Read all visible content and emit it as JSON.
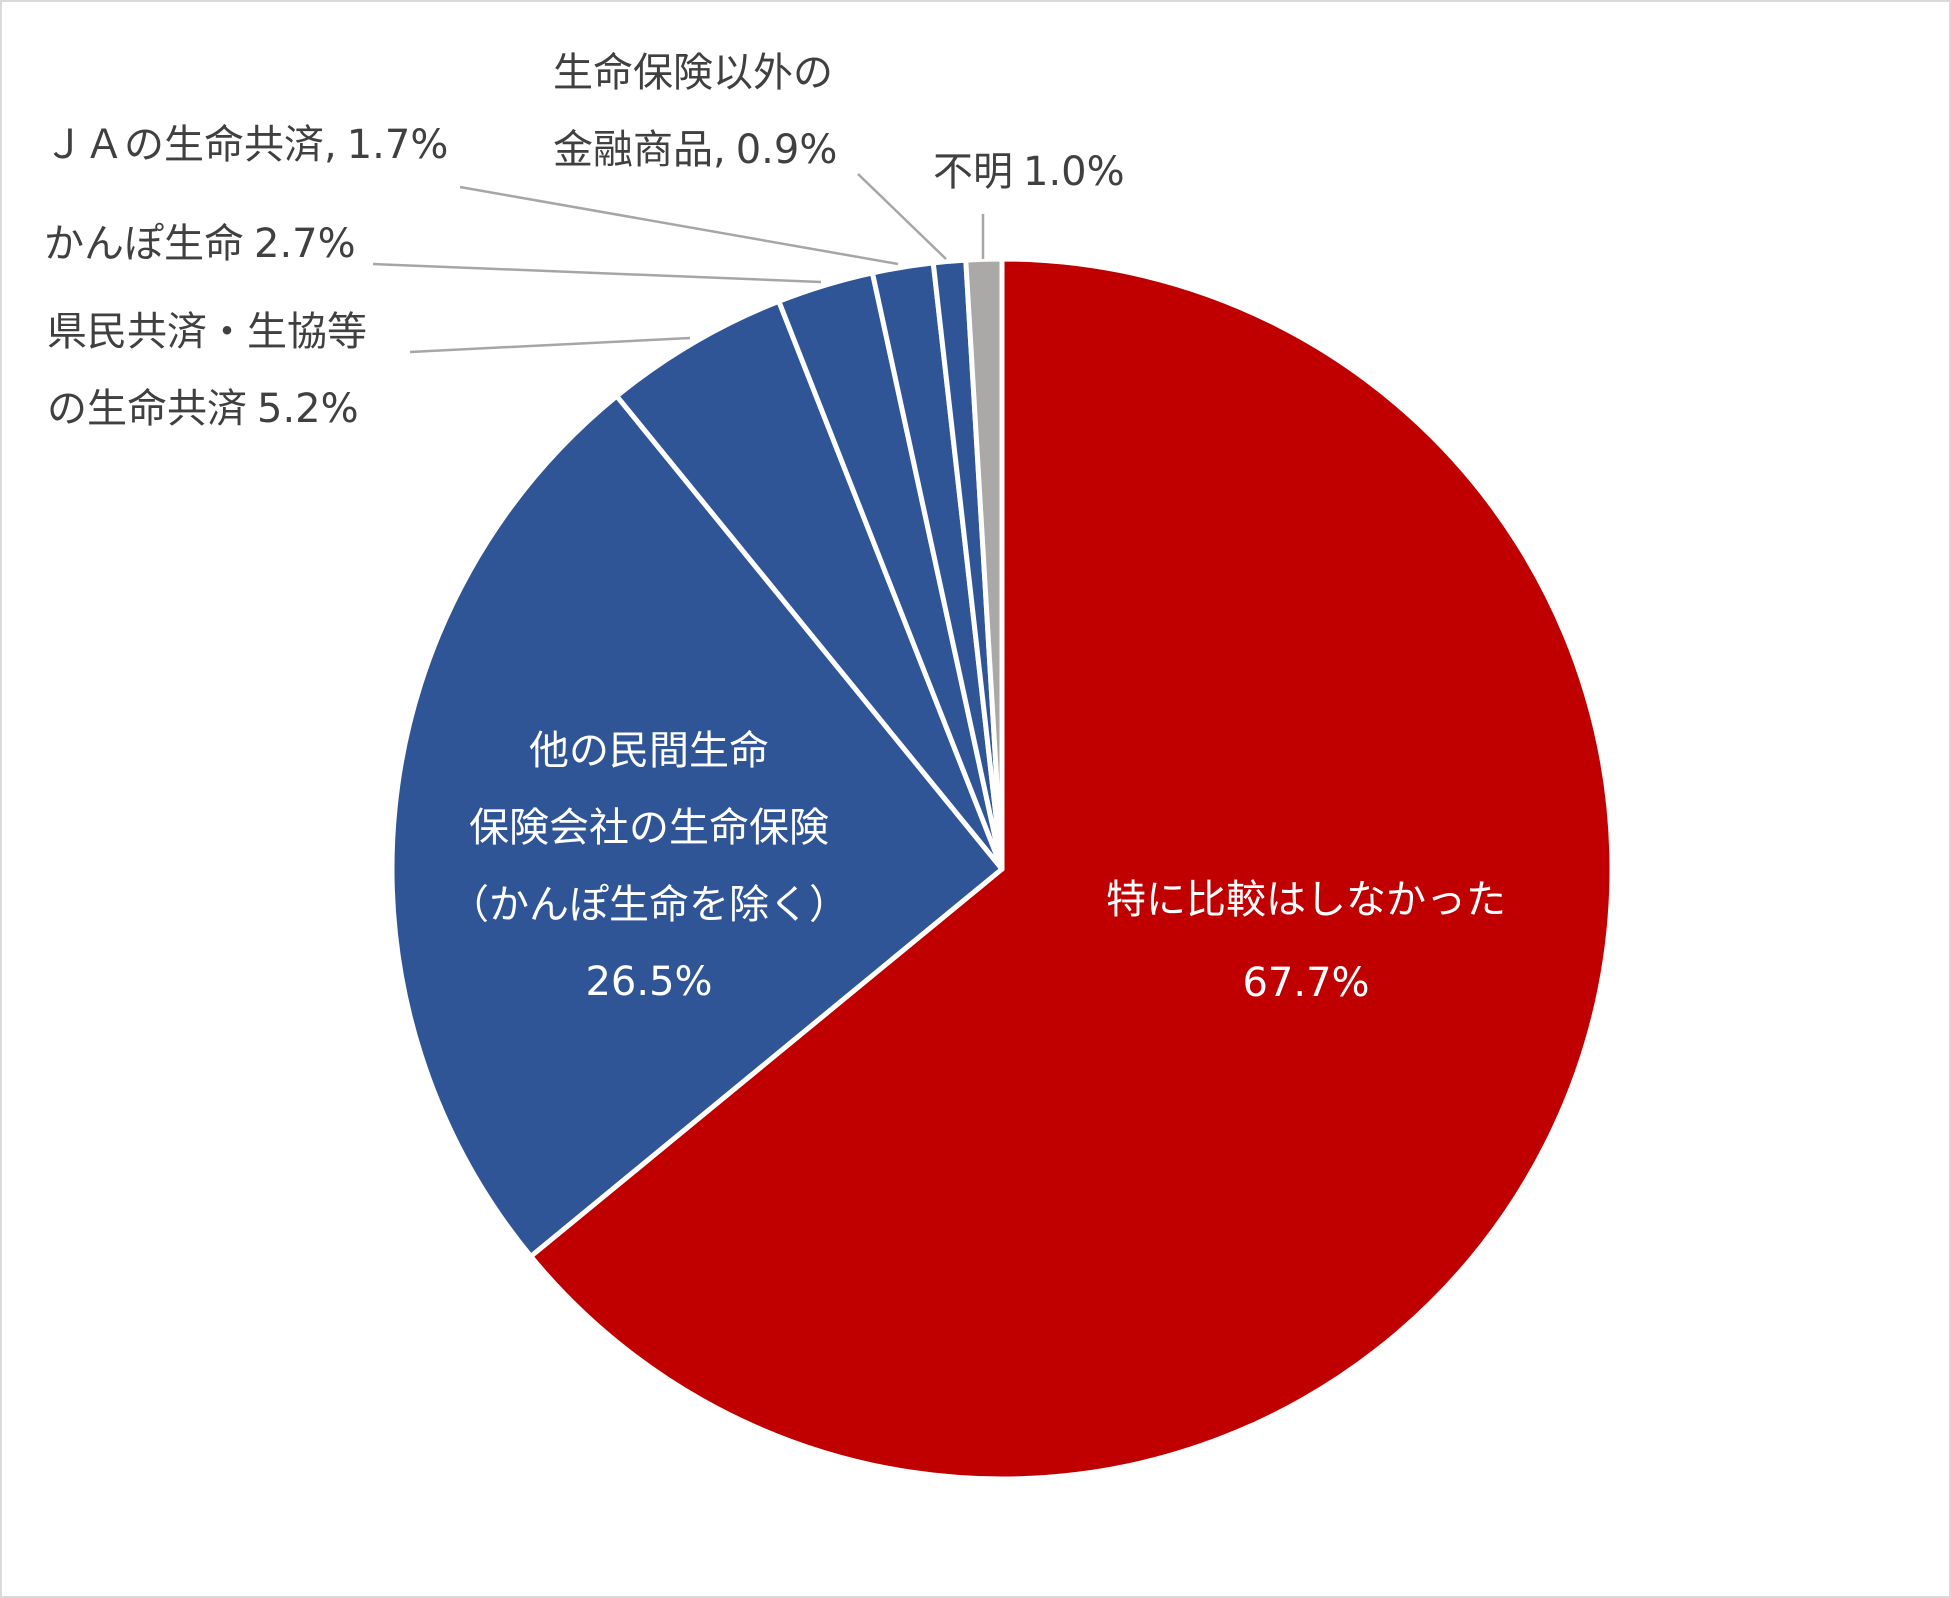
{
  "chart_data": {
    "type": "pie",
    "categories": [
      "特に比較はしなかった",
      "他の民間生命\n保険会社の生命保険\n（かんぽ生命を除く）",
      "県民共済・生協等\nの生命共済",
      "かんぽ生命",
      "ＪＡの生命共済,",
      "生命保険以外の\n金融商品,",
      "不明"
    ],
    "values": [
      67.7,
      26.5,
      5.2,
      2.7,
      1.7,
      0.9,
      1.0
    ],
    "value_labels": [
      "67.7%",
      "26.5%",
      "5.2%",
      "2.7%",
      "1.7%",
      "0.9%",
      "1.0%"
    ],
    "colors": [
      "#c00000",
      "#2f5597",
      "#2f5597",
      "#2f5597",
      "#2f5597",
      "#2f5597",
      "#aba9a8"
    ]
  }
}
